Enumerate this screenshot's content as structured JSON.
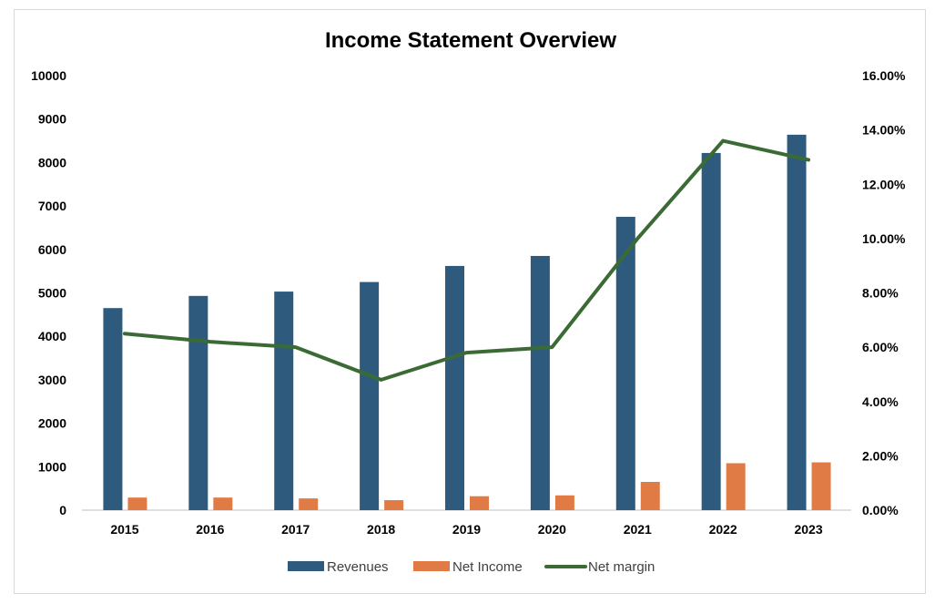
{
  "chart_data": {
    "type": "bar",
    "title": "Income Statement Overview",
    "categories": [
      "2015",
      "2016",
      "2017",
      "2018",
      "2019",
      "2020",
      "2021",
      "2022",
      "2023"
    ],
    "series": [
      {
        "name": "Revenues",
        "kind": "bar",
        "axis": "left",
        "color": "#2e5b7d",
        "values": [
          4650,
          4930,
          5030,
          5250,
          5620,
          5850,
          6750,
          8220,
          8640
        ]
      },
      {
        "name": "Net Income",
        "kind": "bar",
        "axis": "left",
        "color": "#e07b45",
        "values": [
          290,
          290,
          270,
          230,
          320,
          340,
          650,
          1080,
          1100
        ]
      },
      {
        "name": "Net margin",
        "kind": "line",
        "axis": "right",
        "color": "#3a6b35",
        "values": [
          6.5,
          6.2,
          6.0,
          4.8,
          5.8,
          6.0,
          10.0,
          13.6,
          12.9
        ]
      }
    ],
    "y_left": {
      "min": 0,
      "max": 10000,
      "step": 1000,
      "tick_labels": [
        "0",
        "1000",
        "2000",
        "3000",
        "4000",
        "5000",
        "6000",
        "7000",
        "8000",
        "9000",
        "10000"
      ]
    },
    "y_right": {
      "min": 0,
      "max": 16,
      "step": 2,
      "tick_labels": [
        "0.00%",
        "2.00%",
        "4.00%",
        "6.00%",
        "8.00%",
        "10.00%",
        "12.00%",
        "14.00%",
        "16.00%"
      ]
    },
    "grid": false,
    "legend_position": "bottom"
  }
}
